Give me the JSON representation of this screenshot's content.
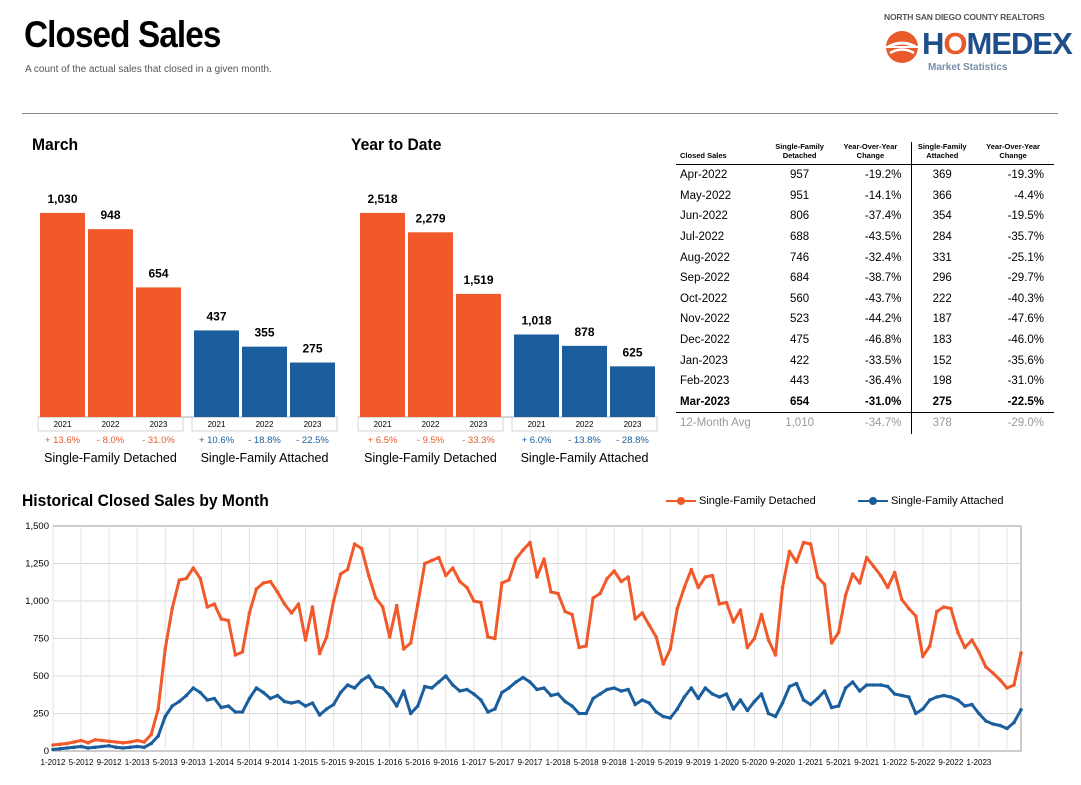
{
  "header": {
    "title": "Closed Sales",
    "subtitle": "A count of the actual sales that closed in a given month."
  },
  "brand": {
    "org": "NORTH SAN DIEGO COUNTY REALTORS",
    "name_part1": "H",
    "name_o": "O",
    "name_part2": "MEDEX",
    "tagline": "Market Statistics",
    "icon": "homedex-logo-icon"
  },
  "colors": {
    "detached": "#f1592a",
    "attached": "#1b5e9e"
  },
  "sections": {
    "march": "March",
    "ytd": "Year to Date",
    "historical": "Historical Closed Sales by Month"
  },
  "chart_data": [
    {
      "type": "bar",
      "title": "March",
      "groups": [
        {
          "name": "Single-Family Detached",
          "categories": [
            "2021",
            "2022",
            "2023"
          ],
          "values": [
            1030,
            948,
            654
          ],
          "labels": [
            "1,030",
            "948",
            "654"
          ],
          "changes": [
            "+ 13.6%",
            "- 8.0%",
            "- 31.0%"
          ]
        },
        {
          "name": "Single-Family Attached",
          "categories": [
            "2021",
            "2022",
            "2023"
          ],
          "values": [
            437,
            355,
            275
          ],
          "labels": [
            "437",
            "355",
            "275"
          ],
          "changes": [
            "+ 10.6%",
            "- 18.8%",
            "- 22.5%"
          ]
        }
      ]
    },
    {
      "type": "bar",
      "title": "Year to Date",
      "groups": [
        {
          "name": "Single-Family Detached",
          "categories": [
            "2021",
            "2022",
            "2023"
          ],
          "values": [
            2518,
            2279,
            1519
          ],
          "labels": [
            "2,518",
            "2,279",
            "1,519"
          ],
          "changes": [
            "+ 6.5%",
            "- 9.5%",
            "- 33.3%"
          ]
        },
        {
          "name": "Single-Family Attached",
          "categories": [
            "2021",
            "2022",
            "2023"
          ],
          "values": [
            1018,
            878,
            625
          ],
          "labels": [
            "1,018",
            "878",
            "625"
          ],
          "changes": [
            "+ 6.0%",
            "- 13.8%",
            "- 28.8%"
          ]
        }
      ]
    },
    {
      "type": "table",
      "headers": [
        "Closed Sales",
        "Single-Family Detached",
        "Year-Over-Year Change",
        "Single-Family Attached",
        "Year-Over-Year Change"
      ],
      "rows": [
        [
          "Apr-2022",
          "957",
          "-19.2%",
          "369",
          "-19.3%"
        ],
        [
          "May-2022",
          "951",
          "-14.1%",
          "366",
          "-4.4%"
        ],
        [
          "Jun-2022",
          "806",
          "-37.4%",
          "354",
          "-19.5%"
        ],
        [
          "Jul-2022",
          "688",
          "-43.5%",
          "284",
          "-35.7%"
        ],
        [
          "Aug-2022",
          "746",
          "-32.4%",
          "331",
          "-25.1%"
        ],
        [
          "Sep-2022",
          "684",
          "-38.7%",
          "296",
          "-29.7%"
        ],
        [
          "Oct-2022",
          "560",
          "-43.7%",
          "222",
          "-40.3%"
        ],
        [
          "Nov-2022",
          "523",
          "-44.2%",
          "187",
          "-47.6%"
        ],
        [
          "Dec-2022",
          "475",
          "-46.8%",
          "183",
          "-46.0%"
        ],
        [
          "Jan-2023",
          "422",
          "-33.5%",
          "152",
          "-35.6%"
        ],
        [
          "Feb-2023",
          "443",
          "-36.4%",
          "198",
          "-31.0%"
        ],
        [
          "Mar-2023",
          "654",
          "-31.0%",
          "275",
          "-22.5%"
        ]
      ],
      "summary": [
        "12-Month Avg",
        "1,010",
        "-34.7%",
        "378",
        "-29.0%"
      ]
    },
    {
      "type": "line",
      "title": "Historical Closed Sales by Month",
      "x_ticks": [
        "1-2012",
        "5-2012",
        "9-2012",
        "1-2013",
        "5-2013",
        "9-2013",
        "1-2014",
        "5-2014",
        "9-2014",
        "1-2015",
        "5-2015",
        "9-2015",
        "1-2016",
        "5-2016",
        "9-2016",
        "1-2017",
        "5-2017",
        "9-2017",
        "1-2018",
        "5-2018",
        "9-2018",
        "1-2019",
        "5-2019",
        "9-2019",
        "1-2020",
        "5-2020",
        "9-2020",
        "1-2021",
        "5-2021",
        "9-2021",
        "1-2022",
        "5-2022",
        "9-2022",
        "1-2023"
      ],
      "y_ticks": [
        "0",
        "250",
        "500",
        "750",
        "1,000",
        "1,250",
        "1,500"
      ],
      "ylim": [
        0,
        1500
      ],
      "grid": true,
      "legend_position": "top-right",
      "series": [
        {
          "name": "Single-Family Detached",
          "color": "#f1592a",
          "values": [
            40,
            45,
            50,
            60,
            70,
            55,
            75,
            70,
            65,
            60,
            55,
            60,
            70,
            60,
            110,
            280,
            680,
            950,
            1140,
            1150,
            1220,
            1150,
            960,
            980,
            880,
            870,
            640,
            660,
            920,
            1080,
            1120,
            1130,
            1060,
            980,
            920,
            980,
            740,
            960,
            650,
            760,
            1000,
            1180,
            1210,
            1380,
            1350,
            1170,
            1020,
            960,
            760,
            970,
            680,
            720,
            980,
            1250,
            1270,
            1290,
            1170,
            1220,
            1130,
            1090,
            1000,
            990,
            760,
            750,
            1120,
            1140,
            1280,
            1340,
            1390,
            1160,
            1280,
            1060,
            1050,
            930,
            910,
            690,
            700,
            1020,
            1050,
            1150,
            1200,
            1130,
            1160,
            880,
            920,
            840,
            760,
            580,
            680,
            950,
            1090,
            1210,
            1090,
            1160,
            1170,
            980,
            990,
            860,
            940,
            690,
            750,
            910,
            740,
            640,
            1090,
            1330,
            1260,
            1390,
            1380,
            1160,
            1110,
            720,
            790,
            1040,
            1180,
            1120,
            1290,
            1230,
            1170,
            1090,
            1190,
            1010,
            950,
            900,
            630,
            700,
            930,
            960,
            950,
            790,
            690,
            740,
            660,
            560,
            520,
            475,
            420,
            440,
            654
          ]
        },
        {
          "name": "Single-Family Attached",
          "color": "#1b5e9e",
          "values": [
            10,
            15,
            20,
            25,
            30,
            20,
            25,
            30,
            35,
            25,
            20,
            25,
            30,
            25,
            50,
            100,
            230,
            300,
            330,
            370,
            420,
            390,
            340,
            350,
            290,
            300,
            260,
            260,
            350,
            420,
            390,
            350,
            370,
            330,
            320,
            330,
            300,
            320,
            240,
            280,
            310,
            390,
            440,
            420,
            470,
            500,
            430,
            420,
            370,
            300,
            400,
            250,
            300,
            430,
            420,
            460,
            500,
            440,
            400,
            410,
            380,
            340,
            260,
            280,
            390,
            420,
            460,
            490,
            460,
            410,
            420,
            370,
            380,
            330,
            300,
            250,
            250,
            350,
            380,
            410,
            420,
            400,
            410,
            310,
            340,
            320,
            260,
            230,
            220,
            280,
            360,
            420,
            350,
            420,
            380,
            360,
            380,
            280,
            340,
            270,
            330,
            380,
            250,
            230,
            320,
            430,
            450,
            340,
            310,
            350,
            400,
            290,
            300,
            420,
            460,
            400,
            440,
            440,
            440,
            430,
            380,
            370,
            360,
            250,
            280,
            340,
            360,
            370,
            360,
            340,
            300,
            310,
            250,
            200,
            180,
            170,
            150,
            190,
            275
          ]
        }
      ]
    }
  ]
}
